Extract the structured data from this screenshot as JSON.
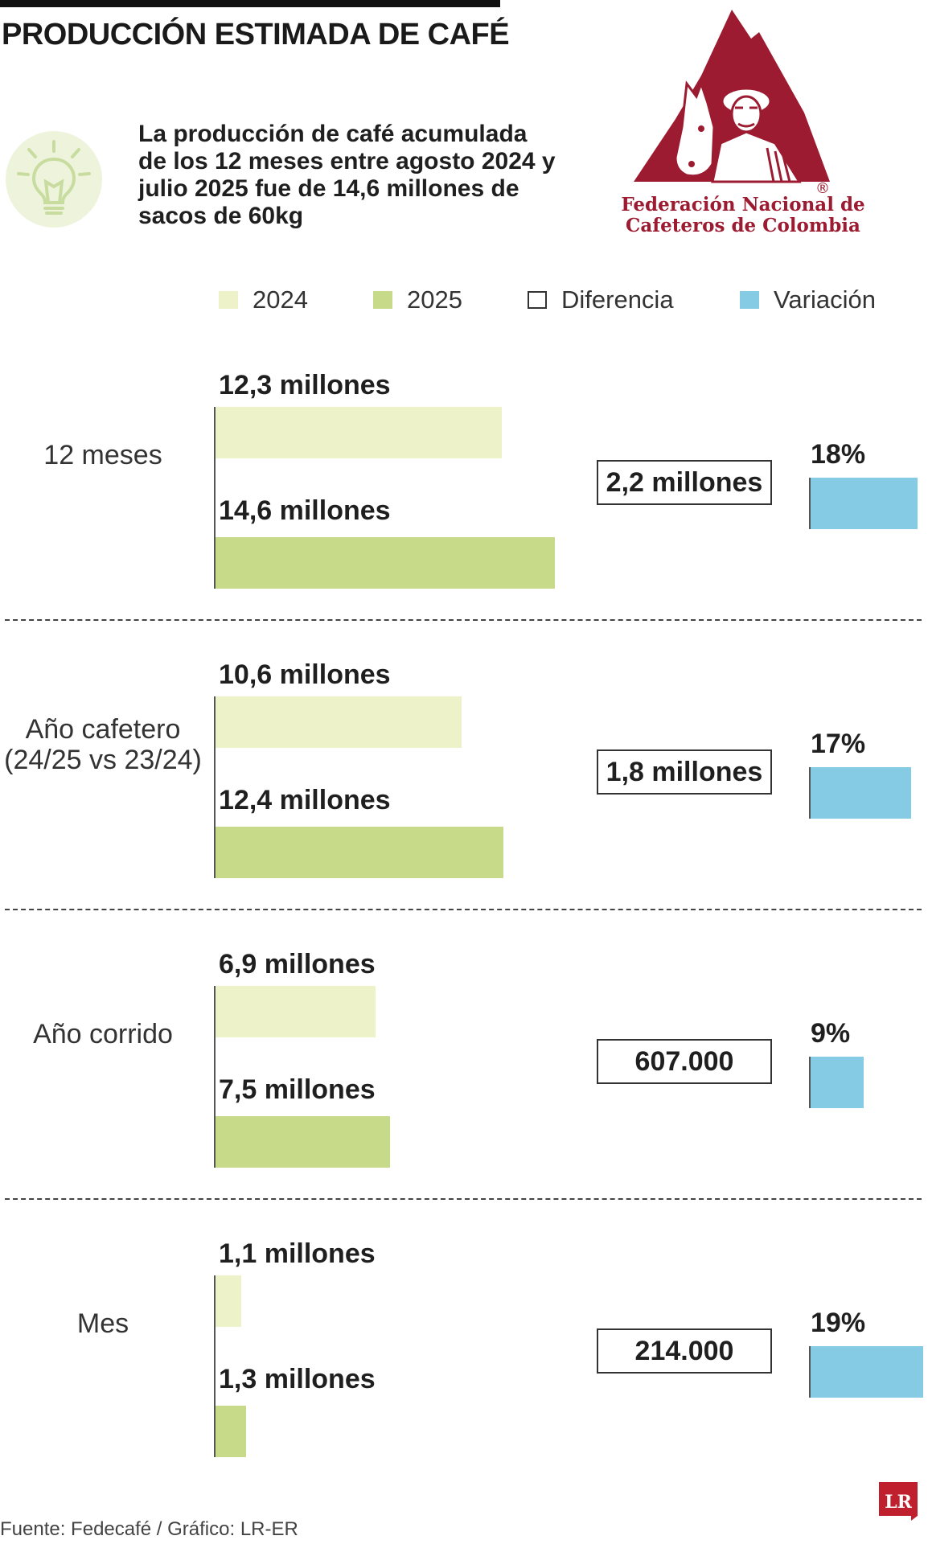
{
  "title": "PRODUCCIÓN ESTIMADA DE CAFÉ",
  "intro": "La producción de café acumulada de los 12 meses entre agosto 2024 y julio 2025 fue de 14,6 millones de sacos de 60kg",
  "icon": "lightbulb-icon",
  "logo": {
    "line1": "Federación Nacional de",
    "line2": "Cafeteros de Colombia",
    "registered": "®"
  },
  "colors": {
    "c2024": "#edf2c9",
    "c2025": "#c6da8a",
    "variation": "#85cbe3",
    "logo_red": "#9c1b31"
  },
  "legend": [
    {
      "label": "2024",
      "color": "#edf2c9",
      "kind": "fill"
    },
    {
      "label": "2025",
      "color": "#c6da8a",
      "kind": "fill"
    },
    {
      "label": "Diferencia",
      "color": "#ffffff",
      "kind": "outline"
    },
    {
      "label": "Variación",
      "color": "#85cbe3",
      "kind": "fill"
    }
  ],
  "chart_data": {
    "type": "bar",
    "orientation": "horizontal",
    "title": "PRODUCCIÓN ESTIMADA DE CAFÉ",
    "unit": "millones de sacos de 60kg",
    "categories": [
      "12 meses",
      "Año cafetero\n(24/25 vs 23/24)",
      "Año corrido",
      "Mes"
    ],
    "series": [
      {
        "name": "2024",
        "values": [
          12.3,
          10.6,
          6.9,
          1.1
        ],
        "labels": [
          "12,3 millones",
          "10,6 millones",
          "6,9 millones",
          "1,1 millones"
        ]
      },
      {
        "name": "2025",
        "values": [
          14.6,
          12.4,
          7.5,
          1.3
        ],
        "labels": [
          "14,6 millones",
          "12,4 millones",
          "7,5 millones",
          "1,3 millones"
        ]
      }
    ],
    "difference": {
      "name": "Diferencia",
      "labels": [
        "2,2 millones",
        "1,8 millones",
        "607.000",
        "214.000"
      ]
    },
    "variation": {
      "name": "Variación",
      "values": [
        18,
        17,
        9,
        19
      ],
      "labels": [
        "18%",
        "17%",
        "9%",
        "19%"
      ]
    },
    "xlim": [
      0,
      14.6
    ]
  },
  "source": "Fuente: Fedecafé / Gráfico: LR-ER",
  "brand": "LR"
}
